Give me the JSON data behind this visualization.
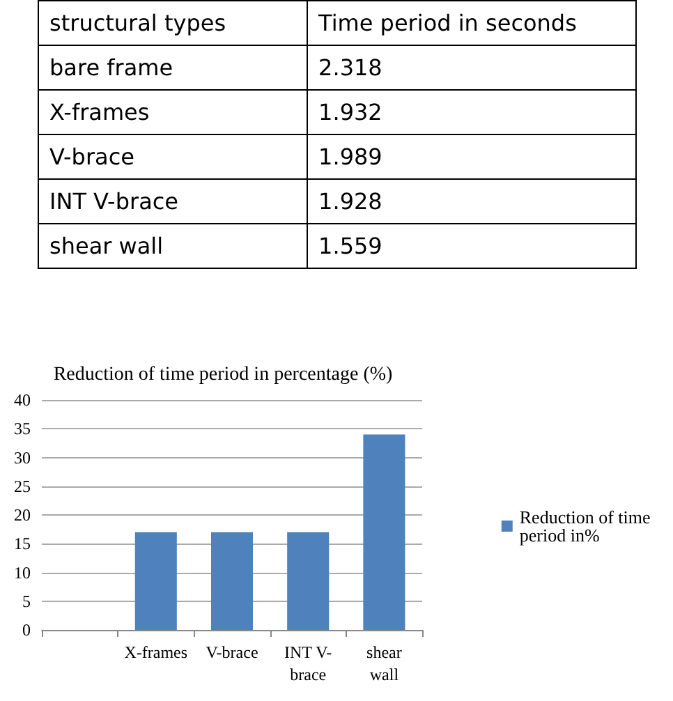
{
  "chart_data": [
    {
      "type": "other",
      "xlabel": "structural types",
      "ylabel": "Time period in seconds",
      "categories": [
        "bare frame",
        "X-frames",
        "V-brace",
        "INT V-brace",
        "shear wall"
      ],
      "values": [
        2.318,
        1.932,
        1.989,
        1.928,
        1.559
      ],
      "data_labels": true
    },
    {
      "type": "bar",
      "title": "Reduction of time period in percentage (%)",
      "categories": [
        null,
        "X-frames",
        "V-brace",
        "INT V-\nbrace",
        "shear\nwall"
      ],
      "series": [
        {
          "name": "Reduction of time period in%",
          "color": "#4f81bd",
          "values": [
            null,
            17,
            17,
            17,
            34
          ]
        }
      ],
      "ylim": [
        0,
        40
      ],
      "yticks": [
        0,
        5,
        10,
        15,
        20,
        25,
        30,
        35,
        40
      ],
      "grid": "y",
      "legend": "right"
    }
  ]
}
